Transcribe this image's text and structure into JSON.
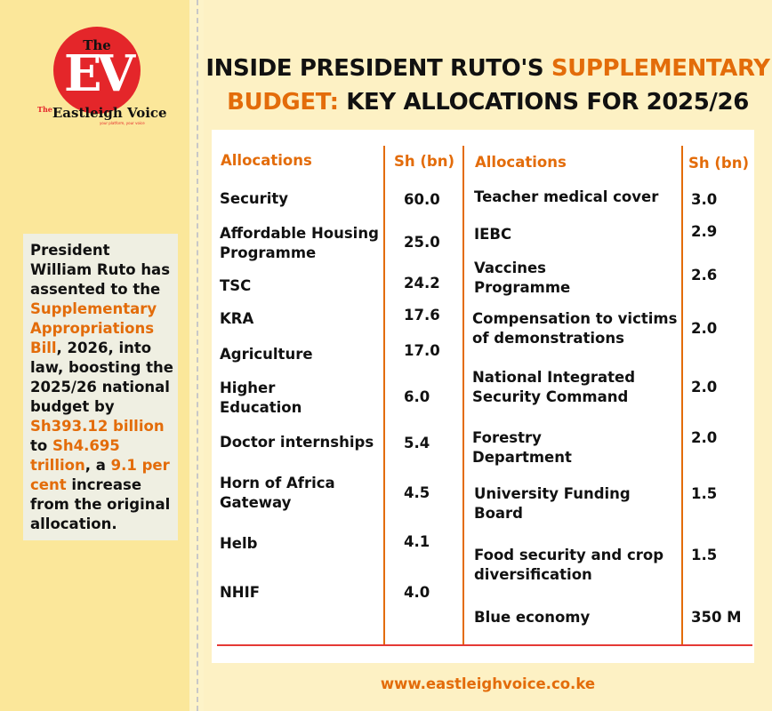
{
  "brand": {
    "logo_the": "The",
    "logo_ev": "EV",
    "logo_name_small": "The",
    "logo_name": "Eastleigh Voice",
    "logo_tagline": "your platform, your voice",
    "red": "#e4262a"
  },
  "colors": {
    "accent": "#e36c0a",
    "rule": "#e53935",
    "left_bg": "#fbe79a",
    "right_bg": "#fdf1c4"
  },
  "headline": {
    "part1": "INSIDE PRESIDENT RUTO'S ",
    "part2_orange": "SUPPLEMENTARY BUDGET:",
    "part3": " KEY ALLOCATIONS FOR 2025/26"
  },
  "summary": {
    "t1": "President William Ruto has assented to the ",
    "h1": "Supplementary Appropriations Bill",
    "t2": ", 2026, into law, boosting the 2025/26 national budget by ",
    "h2": "Sh393.12 billion",
    "t3": " to ",
    "h3": "Sh4.695 trillion",
    "t4": ", a ",
    "h4": "9.1 per cent",
    "t5": " increase from the original allocation."
  },
  "table": {
    "header_allocations": "Allocations",
    "header_amount": "Sh (bn)",
    "left_rows": [
      {
        "name": "Security",
        "value": "60.0"
      },
      {
        "name": "Affordable Housing Programme",
        "value": "25.0"
      },
      {
        "name": "TSC",
        "value": "24.2"
      },
      {
        "name": "KRA",
        "value": "17.6"
      },
      {
        "name": "Agriculture",
        "value": "17.0"
      },
      {
        "name": "Higher Education",
        "value": "6.0"
      },
      {
        "name": "Doctor internships",
        "value": "5.4"
      },
      {
        "name": "Horn of Africa Gateway",
        "value": "4.5"
      },
      {
        "name": "Helb",
        "value": "4.1"
      },
      {
        "name": "NHIF",
        "value": "4.0"
      }
    ],
    "right_rows": [
      {
        "name": "Teacher medical cover",
        "value": "3.0"
      },
      {
        "name": "IEBC",
        "value": "2.9"
      },
      {
        "name": "Vaccines Programme",
        "value": "2.6"
      },
      {
        "name": "Compensation to victims of demonstrations",
        "value": "2.0"
      },
      {
        "name": "National Integrated Security Command",
        "value": "2.0"
      },
      {
        "name": "Forestry Department",
        "value": "2.0"
      },
      {
        "name": "University Funding Board",
        "value": "1.5"
      },
      {
        "name": "Food security and crop diversification",
        "value": "1.5"
      },
      {
        "name": "Blue economy",
        "value": "350 M"
      }
    ]
  },
  "footer": {
    "url": "www.eastleighvoice.co.ke"
  }
}
